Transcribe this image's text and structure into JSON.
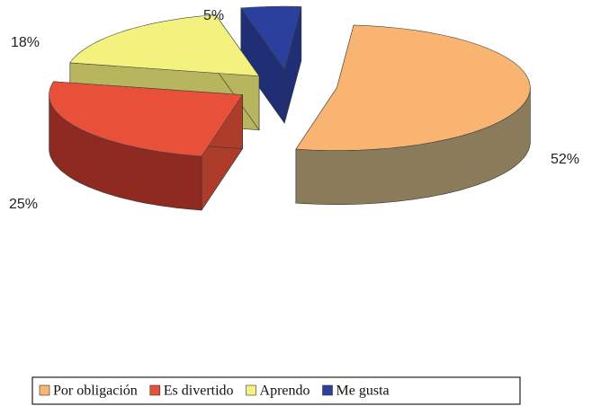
{
  "chart_data": {
    "type": "pie3d",
    "categories": [
      "Por obligación",
      "Es divertido",
      "Aprendo",
      "Me gusta"
    ],
    "values": [
      52,
      25,
      18,
      5
    ],
    "value_labels": [
      "52%",
      "25%",
      "18%",
      "5%"
    ],
    "colors": [
      "#f8b470",
      "#e8503a",
      "#f4f27e",
      "#2b3f9c"
    ],
    "legend": "bottom"
  }
}
